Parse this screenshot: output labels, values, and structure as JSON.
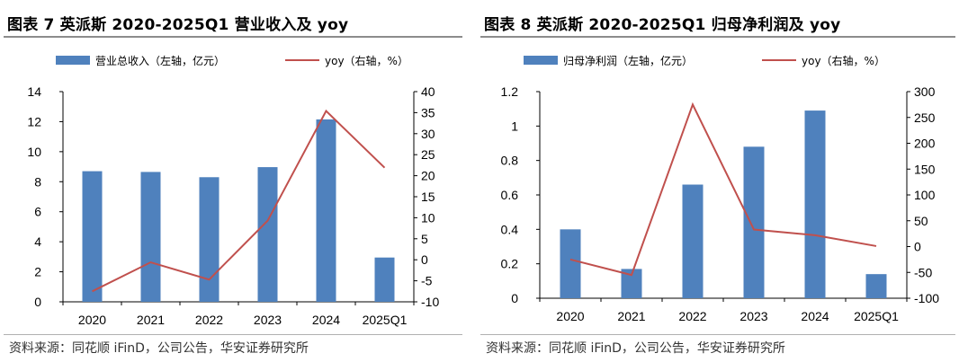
{
  "chart_data": [
    {
      "type": "bar",
      "title": "图表 7 英派斯 2020-2025Q1 营业收入及 yoy",
      "categories": [
        "2020",
        "2021",
        "2022",
        "2023",
        "2024",
        "2025Q1"
      ],
      "series": [
        {
          "name": "营业总收入（左轴，亿元）",
          "type": "bar",
          "axis": "left",
          "values": [
            8.7,
            8.65,
            8.3,
            8.97,
            12.15,
            2.95
          ],
          "color": "#4f81bd"
        },
        {
          "name": "yoy（右轴，%）",
          "type": "line",
          "axis": "right",
          "values": [
            -7.5,
            -0.6,
            -4.7,
            9.3,
            35.4,
            21.9
          ],
          "color": "#c0504d"
        }
      ],
      "ylim_left": [
        0,
        14
      ],
      "ytick_step_left": 2,
      "ylim_right": [
        -10,
        40
      ],
      "ytick_step_right": 5,
      "grid": false,
      "legend": "top",
      "source": "资料来源：同花顺 iFinD，公司公告，华安证券研究所"
    },
    {
      "type": "bar",
      "title": "图表 8 英派斯 2020-2025Q1 归母净利润及 yoy",
      "categories": [
        "2020",
        "2021",
        "2022",
        "2023",
        "2024",
        "2025Q1"
      ],
      "series": [
        {
          "name": "归母净利润（左轴，亿元）",
          "type": "bar",
          "axis": "left",
          "values": [
            0.4,
            0.17,
            0.66,
            0.88,
            1.09,
            0.14
          ],
          "color": "#4f81bd"
        },
        {
          "name": "yoy（右轴，%）",
          "type": "line",
          "axis": "right",
          "values": [
            -25,
            -55,
            275,
            33,
            22,
            1
          ],
          "color": "#c0504d"
        }
      ],
      "ylim_left": [
        0,
        1.2
      ],
      "ytick_step_left": 0.2,
      "ylim_right": [
        -100,
        300
      ],
      "ytick_step_right": 50,
      "grid": false,
      "legend": "top",
      "source": "资料来源：同花顺 iFinD，公司公告，华安证券研究所"
    }
  ]
}
